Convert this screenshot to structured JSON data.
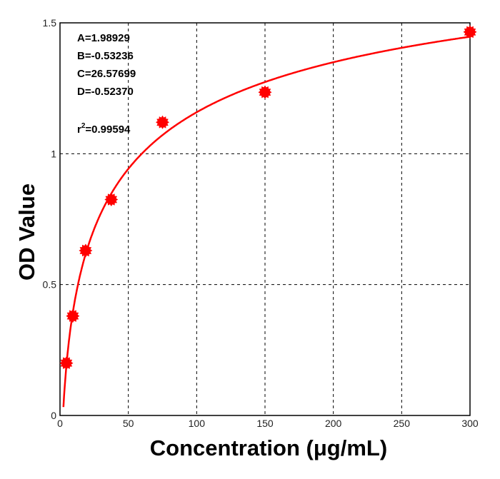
{
  "chart_data": {
    "type": "scatter",
    "xlabel": "Concentration (μg/mL)",
    "ylabel": "OD Value",
    "xlim": [
      0,
      300
    ],
    "ylim": [
      0,
      1.5
    ],
    "x_ticks": [
      "0",
      "50",
      "100",
      "150",
      "200",
      "250",
      "300"
    ],
    "y_ticks": [
      "0",
      "0.5",
      "1",
      "1.5"
    ],
    "grid": true,
    "points": [
      {
        "x": 4.6875,
        "y": 0.2
      },
      {
        "x": 9.375,
        "y": 0.38
      },
      {
        "x": 18.75,
        "y": 0.63
      },
      {
        "x": 37.5,
        "y": 0.825
      },
      {
        "x": 75,
        "y": 1.12
      },
      {
        "x": 150,
        "y": 1.235
      },
      {
        "x": 300,
        "y": 1.465
      }
    ],
    "fit": {
      "model": "4PL",
      "A": 1.98929,
      "B": -0.53236,
      "C": 26.57699,
      "D": -0.5237
    },
    "colors": {
      "series": "#ff0000",
      "grid": "#000000"
    }
  },
  "annotations": {
    "param_a": "A=1.98929",
    "param_b": "B=-0.53236",
    "param_c": "C=26.57699",
    "param_d": "D=-0.52370",
    "r2_prefix": "r",
    "r2_sup": "2",
    "r2_value": "=0.99594"
  }
}
